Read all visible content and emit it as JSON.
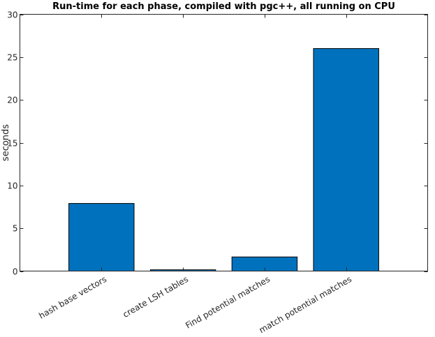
{
  "chart_data": {
    "type": "bar",
    "title": "Run-time for each phase, compiled with pgc++, all running on CPU",
    "xlabel": "",
    "ylabel": "seconds",
    "categories": [
      "hash base vectors",
      "create LSH tables",
      "Find potential matches",
      "match potential matches"
    ],
    "values": [
      7.9,
      0.15,
      1.65,
      26.0
    ],
    "ylim": [
      0,
      30
    ],
    "yticks": [
      "0",
      "5",
      "10",
      "15",
      "20",
      "25",
      "30"
    ],
    "grid": false,
    "bar_color": "#0072bd",
    "bar_edge_color": "#000000"
  }
}
